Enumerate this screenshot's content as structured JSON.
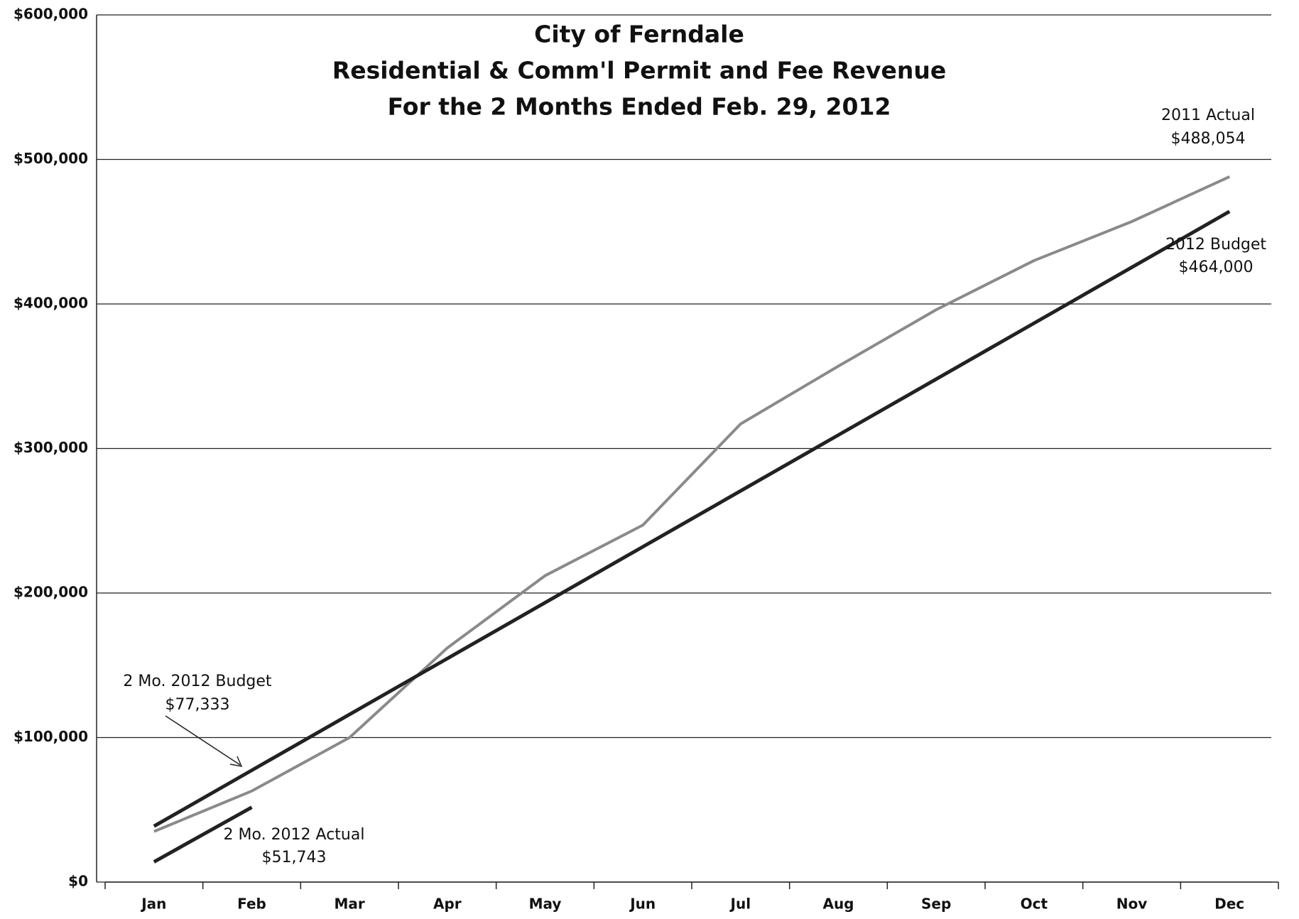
{
  "chart_data": {
    "type": "line",
    "title": [
      "City of Ferndale",
      "Residential & Comm'l Permit and Fee Revenue",
      "For the 2 Months Ended Feb. 29, 2012"
    ],
    "categories": [
      "Jan",
      "Feb",
      "Mar",
      "Apr",
      "May",
      "Jun",
      "Jul",
      "Aug",
      "Sep",
      "Oct",
      "Nov",
      "Dec"
    ],
    "series": [
      {
        "name": "2011 Actual",
        "color": "#8a8a8a",
        "values": [
          35000,
          63000,
          100000,
          162000,
          212000,
          247000,
          317000,
          357000,
          396000,
          430000,
          457000,
          488054
        ]
      },
      {
        "name": "2012 Budget",
        "color": "#222222",
        "values": [
          38667,
          77333,
          116000,
          154667,
          193333,
          232000,
          270667,
          309333,
          348000,
          386667,
          425333,
          464000
        ]
      },
      {
        "name": "2012 Actual",
        "color": "#222222",
        "values": [
          14000,
          51743,
          null,
          null,
          null,
          null,
          null,
          null,
          null,
          null,
          null,
          null
        ]
      }
    ],
    "annotations": [
      "2011 Actual",
      "$488,054",
      "2012 Budget",
      "$464,000",
      "2 Mo. 2012 Budget",
      "$77,333",
      "2 Mo. 2012 Actual",
      "$51,743"
    ],
    "ylim": [
      0,
      600000
    ],
    "yticks": [
      {
        "value": 0,
        "label": "$0"
      },
      {
        "value": 100000,
        "label": "$100,000"
      },
      {
        "value": 200000,
        "label": "$200,000"
      },
      {
        "value": 300000,
        "label": "$300,000"
      },
      {
        "value": 400000,
        "label": "$400,000"
      },
      {
        "value": 500000,
        "label": "$500,000"
      },
      {
        "value": 600000,
        "label": "$600,000"
      }
    ],
    "grid": true
  }
}
